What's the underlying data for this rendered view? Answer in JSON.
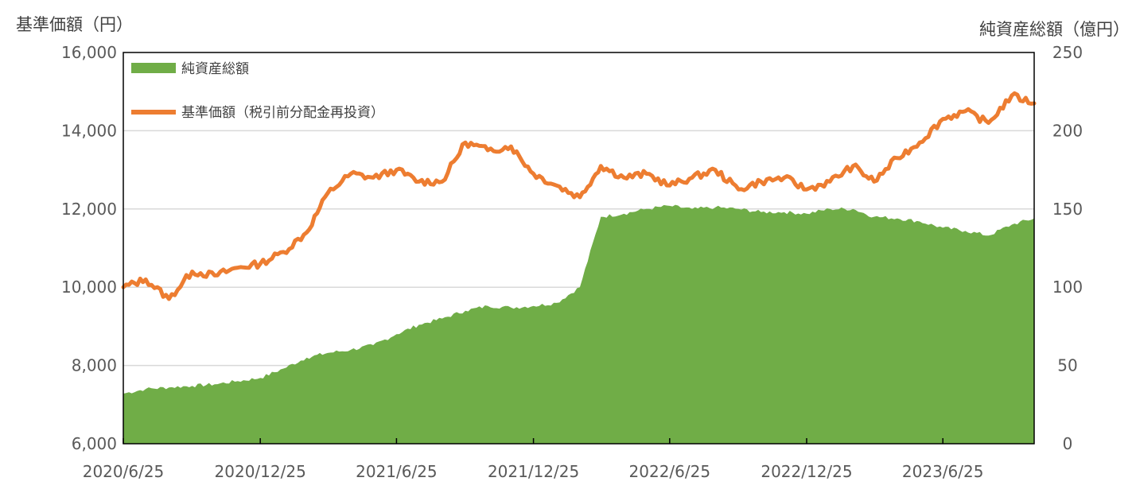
{
  "chart_data": {
    "type": "area+line",
    "y_left_label": "基準価額（円）",
    "y_right_label": "純資産総額（億円）",
    "y_left_ticks": [
      "6,000",
      "8,000",
      "10,000",
      "12,000",
      "14,000",
      "16,000"
    ],
    "y_left_range": [
      6000,
      16000
    ],
    "y_right_ticks": [
      "0",
      "50",
      "100",
      "150",
      "200",
      "250"
    ],
    "y_right_range": [
      0,
      250
    ],
    "x_ticks": [
      "2020/6/25",
      "2020/12/25",
      "2021/6/25",
      "2021/12/25",
      "2022/6/25",
      "2022/12/25",
      "2023/6/25"
    ],
    "x_range": [
      "2020/6/25",
      "2023/10/25"
    ],
    "grid": "horizontal",
    "legend_position": "top-left",
    "series": [
      {
        "name": "純資産総額",
        "kind": "area",
        "axis": "right",
        "color": "#70AD47",
        "points": [
          [
            "2020/6/25",
            32
          ],
          [
            "2020/7/25",
            35
          ],
          [
            "2020/8/25",
            36
          ],
          [
            "2020/9/25",
            37
          ],
          [
            "2020/10/25",
            38
          ],
          [
            "2020/11/25",
            40
          ],
          [
            "2020/12/25",
            42
          ],
          [
            "2021/1/25",
            48
          ],
          [
            "2021/2/25",
            55
          ],
          [
            "2021/3/25",
            58
          ],
          [
            "2021/4/25",
            60
          ],
          [
            "2021/5/25",
            63
          ],
          [
            "2021/6/25",
            70
          ],
          [
            "2021/7/25",
            76
          ],
          [
            "2021/8/25",
            80
          ],
          [
            "2021/9/25",
            85
          ],
          [
            "2021/10/25",
            88
          ],
          [
            "2021/11/25",
            87
          ],
          [
            "2021/12/25",
            88
          ],
          [
            "2022/1/25",
            90
          ],
          [
            "2022/2/25",
            100
          ],
          [
            "2022/3/25",
            145
          ],
          [
            "2022/4/25",
            147
          ],
          [
            "2022/5/25",
            150
          ],
          [
            "2022/6/25",
            152
          ],
          [
            "2022/7/25",
            150
          ],
          [
            "2022/8/25",
            151
          ],
          [
            "2022/9/25",
            150
          ],
          [
            "2022/10/25",
            148
          ],
          [
            "2022/11/25",
            148
          ],
          [
            "2022/12/25",
            147
          ],
          [
            "2023/1/25",
            150
          ],
          [
            "2023/2/25",
            150
          ],
          [
            "2023/3/25",
            145
          ],
          [
            "2023/4/25",
            144
          ],
          [
            "2023/5/25",
            142
          ],
          [
            "2023/6/25",
            138
          ],
          [
            "2023/7/25",
            136
          ],
          [
            "2023/8/25",
            133
          ],
          [
            "2023/9/25",
            140
          ],
          [
            "2023/10/25",
            144
          ]
        ]
      },
      {
        "name": "基準価額（税引前分配金再投資）",
        "kind": "line",
        "axis": "left",
        "color": "#ED7D31",
        "points": [
          [
            "2020/6/25",
            10000
          ],
          [
            "2020/7/25",
            10200
          ],
          [
            "2020/8/25",
            9700
          ],
          [
            "2020/9/25",
            10400
          ],
          [
            "2020/10/25",
            10300
          ],
          [
            "2020/11/25",
            10500
          ],
          [
            "2020/12/25",
            10600
          ],
          [
            "2021/1/25",
            10900
          ],
          [
            "2021/2/25",
            11400
          ],
          [
            "2021/3/25",
            12400
          ],
          [
            "2021/4/25",
            12900
          ],
          [
            "2021/5/25",
            12800
          ],
          [
            "2021/6/25",
            13000
          ],
          [
            "2021/7/25",
            12700
          ],
          [
            "2021/8/25",
            12700
          ],
          [
            "2021/9/25",
            13700
          ],
          [
            "2021/10/25",
            13500
          ],
          [
            "2021/11/25",
            13600
          ],
          [
            "2021/12/25",
            12900
          ],
          [
            "2022/1/25",
            12600
          ],
          [
            "2022/2/25",
            12300
          ],
          [
            "2022/3/25",
            13100
          ],
          [
            "2022/4/25",
            12800
          ],
          [
            "2022/5/25",
            12900
          ],
          [
            "2022/6/25",
            12600
          ],
          [
            "2022/7/25",
            12800
          ],
          [
            "2022/8/25",
            13000
          ],
          [
            "2022/9/25",
            12500
          ],
          [
            "2022/10/25",
            12700
          ],
          [
            "2022/11/25",
            12800
          ],
          [
            "2022/12/25",
            12500
          ],
          [
            "2023/1/25",
            12700
          ],
          [
            "2023/2/25",
            13100
          ],
          [
            "2023/3/25",
            12700
          ],
          [
            "2023/4/25",
            13300
          ],
          [
            "2023/5/25",
            13700
          ],
          [
            "2023/6/25",
            14300
          ],
          [
            "2023/7/25",
            14500
          ],
          [
            "2023/8/25",
            14200
          ],
          [
            "2023/9/25",
            14900
          ],
          [
            "2023/10/25",
            14700
          ]
        ]
      }
    ]
  },
  "colors": {
    "area": "#70AD47",
    "line": "#ED7D31",
    "grid": "#D9D9D9",
    "frame": "#000000"
  }
}
